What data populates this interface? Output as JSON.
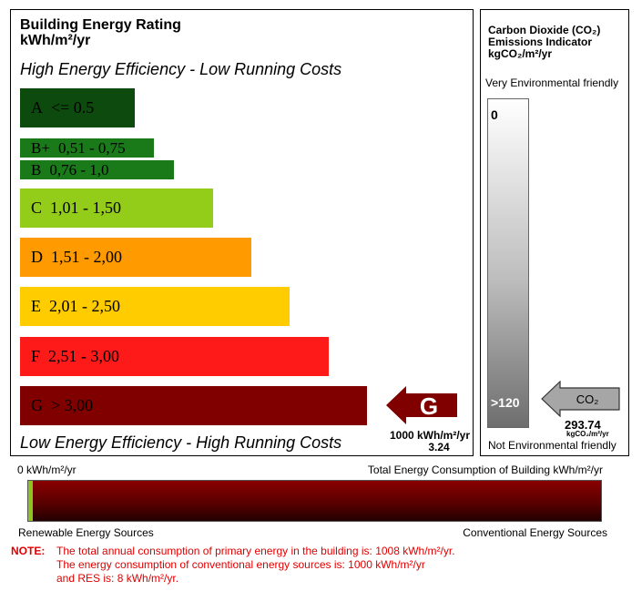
{
  "rating_panel": {
    "title_line1": "Building Energy Rating",
    "title_line2": "kWh/m²/yr",
    "top_caption": "High Energy Efficiency - Low Running Costs",
    "bottom_caption": "Low Energy Efficiency - High Running Costs",
    "bands": [
      {
        "grade": "A",
        "range": "<= 0.5",
        "color": "#0d4a0d"
      },
      {
        "grade": "B+",
        "range": "0,51 - 0,75",
        "color": "#1a7a1a"
      },
      {
        "grade": "B",
        "range": "0,76 - 1,0",
        "color": "#1a7a1a"
      },
      {
        "grade": "C",
        "range": "1,01 - 1,50",
        "color": "#94cc1a"
      },
      {
        "grade": "D",
        "range": "1,51 - 2,00",
        "color": "#ff9a00"
      },
      {
        "grade": "E",
        "range": "2,01 - 2,50",
        "color": "#ffcc00"
      },
      {
        "grade": "F",
        "range": "2,51 - 3,00",
        "color": "#ff1a1a"
      },
      {
        "grade": "G",
        "range": "> 3,00",
        "color": "#800000"
      }
    ],
    "rating": {
      "grade": "G",
      "value_line1": "1000 kWh/m²/yr",
      "value_line2": "3.24",
      "color": "#800000"
    }
  },
  "co2_panel": {
    "title_line1": "Carbon Dioxide (CO₂)",
    "title_line2": "Emissions Indicator",
    "title_line3": "kgCO₂/m²/yr",
    "top_label": "Very Environmental friendly",
    "scale_min": "0",
    "scale_max": ">120",
    "bottom_label": "Not Environmental friendly",
    "arrow_label": "CO₂",
    "value": "293.74",
    "value_unit": "kgCO₂/m²/yr"
  },
  "consumption_bar": {
    "left_label": "0 kWh/m²/yr",
    "right_label": "Total Energy Consumption of Building kWh/m²/yr",
    "bottom_left_label": "Renewable Energy Sources",
    "bottom_right_label": "Conventional Energy Sources",
    "renewable_fraction": 0.008,
    "colors": {
      "renewable": "#8dc21f",
      "conventional": "#7a0000"
    }
  },
  "note": {
    "label": "NOTE:",
    "line1": "The total annual consumption of primary energy in the building is: 1008 kWh/m²/yr.",
    "line2": "The energy consumption of conventional energy sources is: 1000 kWh/m²/yr",
    "line3": "and RES is: 8 kWh/m²/yr."
  }
}
